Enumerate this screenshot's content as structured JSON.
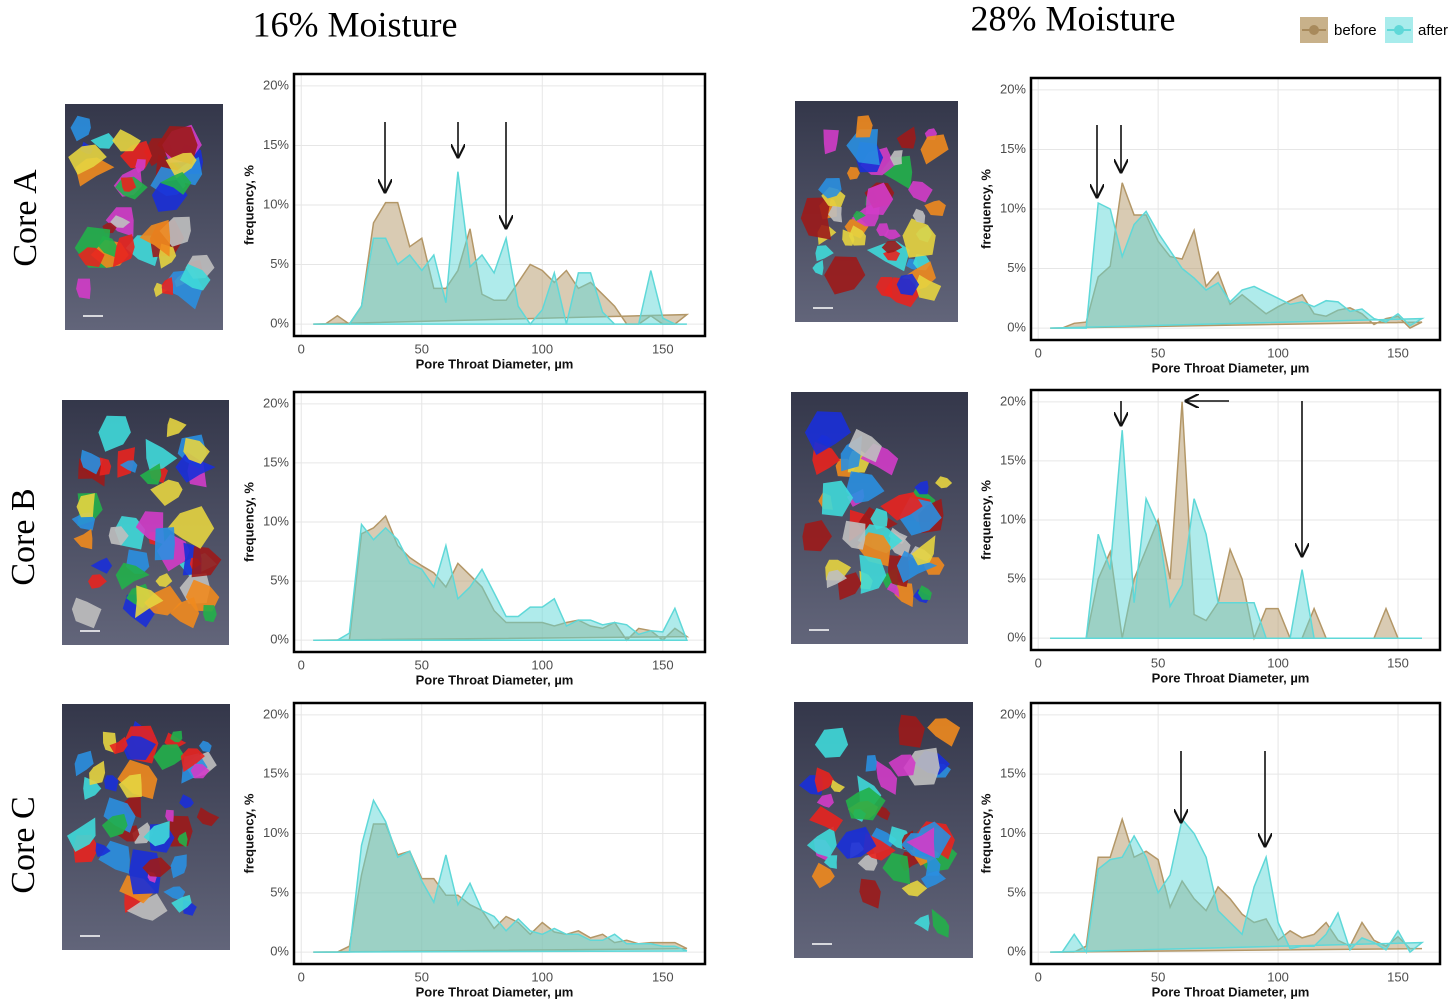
{
  "figure": {
    "columns": [
      "16% Moisture",
      "28% Moisture"
    ],
    "rows": [
      "Core A",
      "Core B",
      "Core C"
    ]
  },
  "chart_data": [
    {
      "type": "area",
      "xlabel": "Pore Throat Diameter, µm",
      "ylabel": "frequency, %",
      "grid": true,
      "xlim": [
        -3,
        167.5
      ],
      "ylim": [
        -1,
        21
      ],
      "xticks": [
        0,
        50,
        100,
        150
      ],
      "yticks": [
        {
          "value": 0,
          "label": "0%"
        },
        {
          "value": 5,
          "label": "5%"
        },
        {
          "value": 10,
          "label": "10%"
        },
        {
          "value": 15,
          "label": "15%"
        },
        {
          "value": 20,
          "label": "20%"
        }
      ],
      "x": [
        5,
        10,
        15,
        20,
        25,
        30,
        35,
        40,
        45,
        50,
        55,
        60,
        65,
        70,
        75,
        80,
        85,
        90,
        95,
        100,
        105,
        110,
        115,
        120,
        125,
        130,
        135,
        140,
        145,
        150,
        155,
        160
      ],
      "series": [
        {
          "name": "before",
          "color": "#b39767",
          "values": [
            0,
            0,
            0.7,
            0,
            1.5,
            8.5,
            10.2,
            10.2,
            6.5,
            7.2,
            3,
            3,
            4.5,
            8,
            2.5,
            2,
            2,
            3.5,
            5,
            4.5,
            3.5,
            4.5,
            3,
            3.5,
            2.5,
            1.5,
            0,
            0,
            0.7,
            0,
            0,
            0.8
          ]
        },
        {
          "name": "after",
          "color": "#5fd8d8",
          "values": [
            0,
            0,
            0,
            0,
            1.5,
            7.2,
            7.2,
            5,
            5.8,
            4.5,
            5.8,
            1.8,
            12.8,
            4.8,
            5.8,
            4.3,
            7.2,
            1.5,
            0,
            1.2,
            4.3,
            0,
            4.3,
            4.3,
            1,
            0,
            0,
            0,
            4.5,
            0.5,
            0,
            0
          ]
        }
      ]
    },
    {
      "type": "area",
      "xlabel": "Pore Throat Diameter, µm",
      "ylabel": "frequency, %",
      "grid": true,
      "xlim": [
        -3,
        167.5
      ],
      "ylim": [
        -1,
        21
      ],
      "xticks": [
        0,
        50,
        100,
        150
      ],
      "yticks": [
        {
          "value": 0,
          "label": "0%"
        },
        {
          "value": 5,
          "label": "5%"
        },
        {
          "value": 10,
          "label": "10%"
        },
        {
          "value": 15,
          "label": "15%"
        },
        {
          "value": 20,
          "label": "20%"
        }
      ],
      "x": [
        5,
        10,
        15,
        20,
        25,
        30,
        35,
        40,
        45,
        50,
        55,
        60,
        65,
        70,
        75,
        80,
        85,
        90,
        95,
        100,
        105,
        110,
        115,
        120,
        125,
        130,
        135,
        140,
        145,
        150,
        155,
        160
      ],
      "series": [
        {
          "name": "before",
          "color": "#b39767",
          "values": [
            0,
            0,
            0.4,
            0.5,
            4.3,
            5.2,
            12.2,
            9.5,
            9.5,
            7.3,
            6,
            5.8,
            8.2,
            3.5,
            4.7,
            2,
            2.8,
            2,
            1.2,
            1.8,
            2.3,
            2.8,
            1.2,
            1,
            1.5,
            1.7,
            1.2,
            0.3,
            0.8,
            1,
            0,
            0.5
          ]
        },
        {
          "name": "after",
          "color": "#5fd8d8",
          "values": [
            0,
            0,
            0,
            0,
            10.5,
            10,
            6,
            8.7,
            9.8,
            8,
            6.5,
            5,
            4.2,
            3.2,
            3.8,
            2.2,
            3.2,
            3.5,
            3,
            2.5,
            2,
            2.2,
            1.8,
            2.3,
            2.2,
            1.4,
            1.6,
            0.8,
            0.5,
            1.2,
            0.2,
            0.8
          ]
        }
      ]
    },
    {
      "type": "area",
      "xlabel": "Pore Throat Diameter, µm",
      "ylabel": "frequency, %",
      "grid": true,
      "xlim": [
        -3,
        167.5
      ],
      "ylim": [
        -1,
        21
      ],
      "xticks": [
        0,
        50,
        100,
        150
      ],
      "yticks": [
        {
          "value": 0,
          "label": "0%"
        },
        {
          "value": 5,
          "label": "5%"
        },
        {
          "value": 10,
          "label": "10%"
        },
        {
          "value": 15,
          "label": "15%"
        },
        {
          "value": 20,
          "label": "20%"
        }
      ],
      "x": [
        5,
        10,
        15,
        20,
        25,
        30,
        35,
        40,
        45,
        50,
        55,
        60,
        65,
        70,
        75,
        80,
        85,
        90,
        95,
        100,
        105,
        110,
        115,
        120,
        125,
        130,
        135,
        140,
        145,
        150,
        155,
        160
      ],
      "series": [
        {
          "name": "before",
          "color": "#b39767",
          "values": [
            0,
            0,
            0,
            0,
            9,
            9.5,
            10.5,
            8,
            7,
            6.3,
            5.7,
            4.5,
            6.5,
            5.5,
            4.5,
            2.5,
            1.5,
            1.5,
            1.5,
            1.5,
            1.2,
            1.5,
            1.7,
            1.2,
            1,
            1.5,
            0,
            1,
            0.8,
            0,
            1,
            0.3
          ]
        },
        {
          "name": "after",
          "color": "#5fd8d8",
          "values": [
            0,
            0,
            0,
            0.6,
            9.8,
            8.5,
            9.5,
            8.5,
            6.5,
            6,
            4.5,
            8,
            3.5,
            4.5,
            6,
            4,
            2,
            2,
            2.8,
            2.8,
            3.5,
            1.2,
            1.7,
            1.7,
            1.3,
            1.5,
            1.3,
            0.5,
            0.8,
            0.7,
            2.7,
            0
          ]
        }
      ]
    },
    {
      "type": "area",
      "xlabel": "Pore Throat Diameter, µm",
      "ylabel": "frequency, %",
      "grid": true,
      "xlim": [
        -3,
        167.5
      ],
      "ylim": [
        -1,
        21
      ],
      "xticks": [
        0,
        50,
        100,
        150
      ],
      "yticks": [
        {
          "value": 0,
          "label": "0%"
        },
        {
          "value": 5,
          "label": "5%"
        },
        {
          "value": 10,
          "label": "10%"
        },
        {
          "value": 15,
          "label": "15%"
        },
        {
          "value": 20,
          "label": "20%"
        }
      ],
      "x": [
        5,
        10,
        15,
        20,
        25,
        30,
        35,
        40,
        45,
        50,
        55,
        60,
        65,
        70,
        75,
        80,
        85,
        90,
        95,
        100,
        105,
        110,
        115,
        120,
        125,
        130,
        135,
        140,
        145,
        150,
        155,
        160
      ],
      "series": [
        {
          "name": "before",
          "color": "#b39767",
          "values": [
            0,
            0,
            0,
            0,
            5,
            7.3,
            0,
            5,
            7.5,
            10,
            5,
            20,
            2,
            1.5,
            3,
            7.5,
            5,
            0,
            2.5,
            2.5,
            0,
            0,
            2.5,
            0,
            0,
            0,
            0,
            0,
            2.5,
            0,
            0,
            0
          ]
        },
        {
          "name": "after",
          "color": "#5fd8d8",
          "values": [
            0,
            0,
            0,
            0,
            8.8,
            5.8,
            17.6,
            3,
            11.8,
            9.5,
            2.7,
            4.5,
            11.8,
            8.8,
            3,
            3,
            3,
            3,
            0,
            0,
            0,
            5.8,
            0,
            0,
            0,
            0,
            0,
            0,
            0,
            0,
            0,
            0
          ]
        }
      ]
    },
    {
      "type": "area",
      "xlabel": "Pore Throat Diameter, µm",
      "ylabel": "frequency, %",
      "grid": true,
      "xlim": [
        -3,
        167.5
      ],
      "ylim": [
        -1,
        21
      ],
      "xticks": [
        0,
        50,
        100,
        150
      ],
      "yticks": [
        {
          "value": 0,
          "label": "0%"
        },
        {
          "value": 5,
          "label": "5%"
        },
        {
          "value": 10,
          "label": "10%"
        },
        {
          "value": 15,
          "label": "15%"
        },
        {
          "value": 20,
          "label": "20%"
        }
      ],
      "x": [
        5,
        10,
        15,
        20,
        25,
        30,
        35,
        40,
        45,
        50,
        55,
        60,
        65,
        70,
        75,
        80,
        85,
        90,
        95,
        100,
        105,
        110,
        115,
        120,
        125,
        130,
        135,
        140,
        145,
        150,
        155,
        160
      ],
      "series": [
        {
          "name": "before",
          "color": "#b39767",
          "values": [
            0,
            0,
            0,
            0.5,
            6.5,
            10.8,
            10.8,
            8.2,
            8.5,
            6.2,
            6.2,
            4.8,
            4.8,
            4,
            3.5,
            2,
            3,
            2.5,
            1.5,
            2.5,
            1.7,
            1.5,
            1.8,
            1.2,
            1.5,
            0.8,
            1,
            0.7,
            0.8,
            0.8,
            0.8,
            0.3
          ]
        },
        {
          "name": "after",
          "color": "#5fd8d8",
          "values": [
            0,
            0,
            0,
            0,
            9,
            12.8,
            11,
            8,
            8.5,
            6,
            4.2,
            8.2,
            4,
            5.8,
            3.5,
            3,
            1.8,
            2.8,
            1.8,
            1.5,
            2,
            1.5,
            1.5,
            1,
            1,
            1.5,
            0.7,
            0.7,
            0.7,
            0.5,
            0.5,
            0.1
          ]
        }
      ]
    },
    {
      "type": "area",
      "xlabel": "Pore Throat Diameter, µm",
      "ylabel": "frequency, %",
      "grid": true,
      "xlim": [
        -3,
        167.5
      ],
      "ylim": [
        -1,
        21
      ],
      "xticks": [
        0,
        50,
        100,
        150
      ],
      "yticks": [
        {
          "value": 0,
          "label": "0%"
        },
        {
          "value": 5,
          "label": "5%"
        },
        {
          "value": 10,
          "label": "10%"
        },
        {
          "value": 15,
          "label": "15%"
        },
        {
          "value": 20,
          "label": "20%"
        }
      ],
      "x": [
        5,
        10,
        15,
        20,
        25,
        30,
        35,
        40,
        45,
        50,
        55,
        60,
        65,
        70,
        75,
        80,
        85,
        90,
        95,
        100,
        105,
        110,
        115,
        120,
        125,
        130,
        135,
        140,
        145,
        150,
        155,
        160
      ],
      "series": [
        {
          "name": "before",
          "color": "#b39767",
          "values": [
            0,
            0,
            0,
            0.5,
            8,
            8,
            11.2,
            8,
            8.5,
            7.8,
            3.8,
            6,
            4.5,
            3.5,
            5.5,
            4.5,
            3.2,
            2.5,
            2.8,
            1,
            1.8,
            1.2,
            1.5,
            2.5,
            1,
            0.5,
            2.5,
            1,
            0.5,
            1.3,
            0.3,
            0.3
          ]
        },
        {
          "name": "after",
          "color": "#5fd8d8",
          "values": [
            0,
            0,
            1.5,
            0,
            7,
            7.8,
            8,
            9.8,
            8,
            5,
            6.5,
            11.2,
            10,
            8,
            3.5,
            2.5,
            1.5,
            5.5,
            8,
            2.5,
            0.3,
            0.5,
            0.5,
            1.5,
            3.3,
            0.2,
            1.2,
            0.8,
            0.2,
            1.8,
            0,
            0.8
          ]
        }
      ]
    }
  ]
}
